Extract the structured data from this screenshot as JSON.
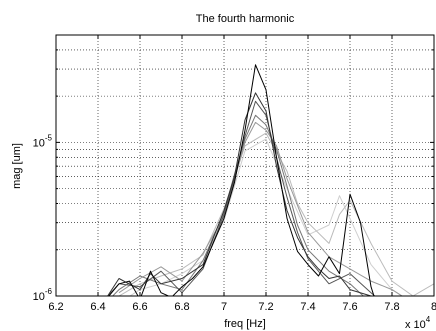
{
  "chart_data": {
    "type": "line",
    "title": "The fourth harmonic",
    "xlabel": "freq [Hz]",
    "ylabel": "mag [um]",
    "x_multiplier_label": "x 10",
    "x_multiplier_exponent": "4",
    "xlim": [
      6.2,
      8.0
    ],
    "ylim": [
      1e-06,
      5e-05
    ],
    "yscale": "log",
    "grid": true,
    "xticks": [
      "6.2",
      "6.4",
      "6.6",
      "6.8",
      "7",
      "7.2",
      "7.4",
      "7.6",
      "7.8",
      "8"
    ],
    "yticks": [
      {
        "base": "10",
        "exp": "-6",
        "value": 1e-06
      },
      {
        "base": "10",
        "exp": "-5",
        "value": 1e-05
      }
    ],
    "series": [
      {
        "color": "#000000",
        "x": [
          6.4,
          6.5,
          6.55,
          6.6,
          6.65,
          6.7,
          6.75,
          6.8,
          6.85,
          6.9,
          7.0,
          7.05,
          7.1,
          7.15,
          7.2,
          7.25,
          7.3,
          7.35,
          7.4,
          7.45,
          7.5,
          7.55,
          7.6,
          7.65,
          7.7,
          7.75
        ],
        "y": [
          8.2e-07,
          1.2e-06,
          1.25e-06,
          9.5e-07,
          1.45e-06,
          1.05e-06,
          9.8e-07,
          1.15e-06,
          1.3e-06,
          1.55e-06,
          3.2e-06,
          5.5e-06,
          1.2e-05,
          3.2e-05,
          2.2e-05,
          8e-06,
          3.2e-06,
          1.95e-06,
          1.6e-06,
          1.35e-06,
          1.8e-06,
          1.4e-06,
          4.6e-06,
          3e-06,
          1.15e-06,
          7e-07
        ]
      },
      {
        "color": "#333333",
        "x": [
          6.4,
          6.5,
          6.6,
          6.65,
          6.7,
          6.8,
          6.9,
          7.0,
          7.05,
          7.1,
          7.15,
          7.2,
          7.25,
          7.3,
          7.35,
          7.4,
          7.45,
          7.5,
          7.55,
          7.6,
          7.7,
          7.8
        ],
        "y": [
          8e-07,
          1.3e-06,
          1.1e-06,
          1.4e-06,
          1.2e-06,
          1.3e-06,
          1.6e-06,
          3.6e-06,
          6e-06,
          1.4e-05,
          2.1e-05,
          1.6e-05,
          7e-06,
          3.6e-06,
          2.4e-06,
          1.8e-06,
          1.5e-06,
          1.3e-06,
          1.35e-06,
          1.1e-06,
          1e-06,
          8e-07
        ]
      },
      {
        "color": "#555555",
        "x": [
          6.4,
          6.5,
          6.6,
          6.7,
          6.8,
          6.9,
          7.0,
          7.05,
          7.1,
          7.15,
          7.2,
          7.25,
          7.3,
          7.35,
          7.4,
          7.5,
          7.6,
          7.7,
          7.8
        ],
        "y": [
          8.5e-07,
          1.2e-06,
          1.15e-06,
          1.45e-06,
          1.05e-06,
          1.5e-06,
          3.4e-06,
          5.8e-06,
          1.1e-05,
          1.85e-05,
          1.5e-05,
          8e-06,
          4.4e-06,
          2.6e-06,
          1.75e-06,
          1.2e-06,
          1.4e-06,
          1.05e-06,
          8e-07
        ]
      },
      {
        "color": "#777777",
        "x": [
          6.4,
          6.5,
          6.6,
          6.7,
          6.8,
          6.9,
          7.0,
          7.05,
          7.1,
          7.15,
          7.2,
          7.25,
          7.3,
          7.35,
          7.4,
          7.5,
          7.6,
          7.7
        ],
        "y": [
          8e-07,
          1.1e-06,
          1.35e-06,
          1.2e-06,
          1.1e-06,
          1.7e-06,
          3.5e-06,
          6.2e-06,
          1.05e-05,
          1.5e-05,
          1.3e-05,
          9e-06,
          5.2e-06,
          2.9e-06,
          2e-06,
          1.45e-06,
          1.2e-06,
          9e-07
        ]
      },
      {
        "color": "#999999",
        "x": [
          6.5,
          6.6,
          6.7,
          6.8,
          6.9,
          7.0,
          7.1,
          7.15,
          7.2,
          7.25,
          7.3,
          7.4,
          7.5,
          7.6,
          7.7,
          7.8,
          7.9
        ],
        "y": [
          1.05e-06,
          1.3e-06,
          1.55e-06,
          1.25e-06,
          1.9e-06,
          3.3e-06,
          1e-05,
          1.35e-05,
          1.2e-05,
          9.5e-06,
          5.8e-06,
          2.6e-06,
          1.8e-06,
          1.5e-06,
          1.25e-06,
          1.1e-06,
          9e-07
        ]
      },
      {
        "color": "#bbbbbb",
        "x": [
          6.5,
          6.6,
          6.7,
          6.8,
          6.9,
          7.0,
          7.1,
          7.2,
          7.3,
          7.35,
          7.4,
          7.5,
          7.55,
          7.6,
          7.7,
          7.8,
          7.9,
          8.0
        ],
        "y": [
          1e-06,
          1.2e-06,
          1.35e-06,
          1.5e-06,
          1.85e-06,
          3.7e-06,
          9.5e-06,
          1.15e-05,
          6.5e-06,
          4e-06,
          3e-06,
          2.2e-06,
          3.4e-06,
          4.2e-06,
          2.2e-06,
          1.25e-06,
          1e-06,
          1.2e-06
        ]
      },
      {
        "color": "#cfcfcf",
        "x": [
          6.5,
          6.6,
          6.7,
          6.8,
          6.9,
          7.0,
          7.1,
          7.2,
          7.3,
          7.4,
          7.5,
          7.55,
          7.6,
          7.7,
          7.8,
          7.9
        ],
        "y": [
          9e-07,
          1.1e-06,
          1.2e-06,
          1.4e-06,
          1.7e-06,
          3.1e-06,
          8.8e-06,
          1.05e-05,
          5e-06,
          2.5e-06,
          2.9e-06,
          4.5e-06,
          3.2e-06,
          1.6e-06,
          1.1e-06,
          9e-07
        ]
      }
    ]
  }
}
